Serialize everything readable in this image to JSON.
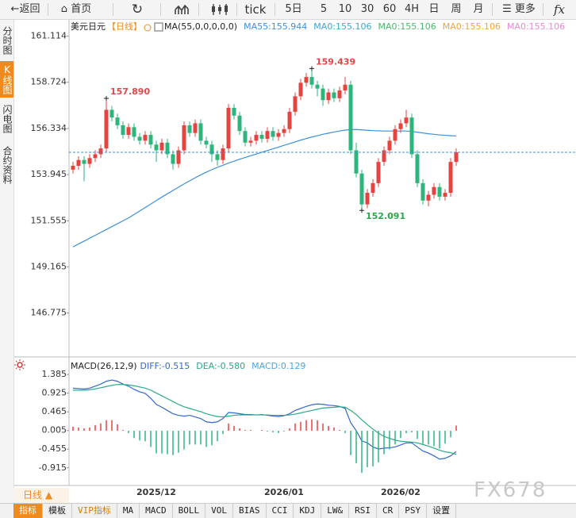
{
  "toolbar": {
    "back": "返回",
    "home": "首页",
    "tick": "tick",
    "periods": [
      "5日",
      "5",
      "10",
      "30",
      "60",
      "4H",
      "日",
      "周",
      "月"
    ],
    "more": "更多",
    "fx": "fx"
  },
  "sidebar": [
    "分时图",
    "K线图",
    "闪电图",
    "合约资料"
  ],
  "chart_data": [
    {
      "type": "candlestick",
      "title": "美元日元",
      "period": "【日线】",
      "indicator": "MA(55,0,0,0,0,0)",
      "legend": [
        {
          "text": "MA55:155.944",
          "color": "#3d8fdc"
        },
        {
          "text": "MA0:155.106",
          "color": "#38a8d0"
        },
        {
          "text": "MA0:155.106",
          "color": "#4cb86a"
        },
        {
          "text": "MA0:155.106",
          "color": "#f0a43a"
        },
        {
          "text": "MA0:155.106",
          "color": "#e58ad2"
        }
      ],
      "up_color": "#e5433f",
      "down_color": "#2db57c",
      "ylim": [
        144.5,
        162
      ],
      "yticks": [
        161.114,
        158.724,
        156.334,
        153.945,
        151.555,
        149.165,
        146.775
      ],
      "annotations": [
        "157.890",
        "159.439",
        "152.091"
      ],
      "open": [
        154.2,
        154.4,
        154.7,
        154.5,
        154.8,
        155.0,
        155.3,
        157.3,
        156.9,
        156.5,
        156.0,
        156.4,
        155.9,
        155.7,
        156.0,
        155.5,
        155.2,
        155.6,
        155.0,
        154.5,
        155.2,
        156.5,
        156.1,
        156.6,
        155.7,
        155.5,
        155.0,
        154.7,
        155.3,
        157.4,
        157.0,
        156.2,
        155.6,
        155.7,
        156.0,
        155.8,
        156.2,
        155.9,
        156.1,
        156.3,
        157.2,
        158.0,
        158.7,
        159.0,
        158.6,
        158.4,
        157.8,
        158.2,
        157.9,
        158.3,
        158.6,
        155.2,
        154.0,
        152.4,
        153.0,
        153.5,
        154.6,
        155.2,
        155.7,
        156.3,
        156.6,
        156.9,
        155.0,
        153.5,
        152.6,
        152.9,
        153.3,
        152.8,
        153.0,
        154.6
      ],
      "high": [
        154.6,
        154.9,
        154.9,
        155.0,
        155.2,
        155.5,
        157.89,
        157.5,
        157.1,
        156.7,
        156.6,
        156.6,
        156.1,
        156.2,
        156.2,
        155.7,
        155.8,
        155.8,
        155.2,
        155.4,
        156.7,
        156.7,
        156.8,
        156.8,
        155.9,
        155.7,
        155.2,
        155.5,
        157.6,
        157.6,
        157.2,
        156.4,
        155.9,
        156.2,
        156.2,
        156.4,
        156.4,
        156.3,
        156.5,
        157.4,
        158.2,
        158.9,
        159.2,
        159.439,
        158.8,
        158.6,
        158.4,
        158.4,
        158.5,
        159.0,
        158.8,
        155.6,
        154.2,
        153.2,
        153.7,
        154.8,
        155.4,
        155.9,
        156.5,
        156.8,
        157.3,
        157.1,
        155.2,
        153.7,
        153.1,
        153.5,
        153.5,
        153.2,
        154.8,
        155.3
      ],
      "low": [
        154.0,
        154.2,
        153.6,
        154.3,
        154.6,
        154.8,
        155.1,
        156.7,
        156.3,
        155.8,
        155.8,
        155.7,
        155.5,
        155.5,
        155.3,
        154.6,
        155.0,
        154.8,
        154.2,
        154.3,
        155.0,
        155.9,
        155.9,
        155.5,
        155.3,
        154.6,
        154.4,
        154.5,
        155.1,
        156.8,
        156.0,
        155.4,
        155.4,
        155.5,
        155.6,
        155.6,
        155.7,
        155.7,
        155.9,
        156.1,
        157.0,
        157.8,
        158.5,
        158.4,
        158.0,
        157.5,
        157.6,
        157.7,
        157.7,
        158.1,
        155.0,
        153.8,
        152.091,
        152.2,
        152.8,
        153.3,
        154.4,
        155.0,
        155.5,
        156.1,
        156.4,
        154.8,
        153.3,
        152.4,
        152.3,
        152.7,
        152.6,
        152.6,
        152.8,
        154.4
      ],
      "close": [
        154.4,
        154.7,
        154.5,
        154.8,
        155.0,
        155.3,
        157.3,
        156.9,
        156.5,
        156.0,
        156.4,
        155.9,
        155.7,
        156.0,
        155.5,
        155.2,
        155.6,
        155.0,
        154.5,
        155.2,
        156.5,
        156.1,
        156.6,
        155.7,
        155.5,
        155.0,
        154.7,
        155.3,
        157.4,
        157.0,
        156.2,
        155.6,
        155.7,
        156.0,
        155.8,
        156.2,
        155.9,
        156.1,
        156.3,
        157.2,
        158.0,
        158.7,
        159.0,
        158.6,
        158.4,
        157.8,
        158.2,
        157.9,
        158.3,
        158.6,
        155.2,
        154.0,
        152.4,
        153.0,
        153.5,
        154.6,
        155.2,
        155.7,
        156.3,
        156.6,
        156.9,
        155.0,
        153.5,
        152.6,
        152.9,
        153.3,
        152.8,
        153.0,
        154.6,
        155.1
      ],
      "ma": [
        150.2,
        150.35,
        150.5,
        150.65,
        150.8,
        150.95,
        151.1,
        151.25,
        151.4,
        151.55,
        151.7,
        151.88,
        152.06,
        152.24,
        152.42,
        152.6,
        152.78,
        152.95,
        153.12,
        153.29,
        153.46,
        153.62,
        153.78,
        153.93,
        154.07,
        154.2,
        154.32,
        154.43,
        154.54,
        154.64,
        154.74,
        154.83,
        154.92,
        155.01,
        155.1,
        155.19,
        155.28,
        155.37,
        155.46,
        155.55,
        155.64,
        155.73,
        155.81,
        155.89,
        155.96,
        156.03,
        156.09,
        156.15,
        156.2,
        156.25,
        156.28,
        156.28,
        156.26,
        156.24,
        156.22,
        156.21,
        156.2,
        156.2,
        156.2,
        156.2,
        156.2,
        156.18,
        156.14,
        156.1,
        156.06,
        156.03,
        156.0,
        155.98,
        155.96,
        155.944
      ]
    },
    {
      "type": "macd",
      "title": "MACD(26,12,9)",
      "ylim": [
        -1.35,
        1.78
      ],
      "yticks": [
        1.385,
        0.925,
        0.465,
        0.005,
        -0.455,
        -0.915
      ],
      "categories": [
        null,
        null,
        null,
        null,
        null,
        null,
        null,
        null,
        null,
        null,
        null,
        null,
        null,
        null,
        null,
        "2025/12",
        null,
        null,
        null,
        null,
        null,
        null,
        null,
        null,
        null,
        null,
        null,
        null,
        null,
        null,
        null,
        null,
        null,
        null,
        null,
        null,
        null,
        null,
        "2026/01",
        null,
        null,
        null,
        null,
        null,
        null,
        null,
        null,
        null,
        null,
        null,
        null,
        null,
        null,
        null,
        null,
        null,
        null,
        null,
        null,
        "2026/02",
        null,
        null,
        null,
        null,
        null,
        null,
        null,
        null,
        null,
        null
      ],
      "series": [
        {
          "label": "DIFF:-0.515",
          "color": "#3468cc",
          "values": [
            1.05,
            1.04,
            1.03,
            1.05,
            1.1,
            1.15,
            1.22,
            1.25,
            1.22,
            1.15,
            1.1,
            1.02,
            0.96,
            0.92,
            0.8,
            0.65,
            0.58,
            0.5,
            0.42,
            0.38,
            0.36,
            0.38,
            0.34,
            0.3,
            0.22,
            0.2,
            0.22,
            0.3,
            0.45,
            0.44,
            0.42,
            0.4,
            0.4,
            0.39,
            0.4,
            0.38,
            0.36,
            0.35,
            0.37,
            0.42,
            0.5,
            0.55,
            0.6,
            0.64,
            0.66,
            0.65,
            0.63,
            0.62,
            0.6,
            0.55,
            0.2,
            0.0,
            -0.25,
            -0.3,
            -0.4,
            -0.45,
            -0.43,
            -0.42,
            -0.4,
            -0.35,
            -0.3,
            -0.3,
            -0.4,
            -0.5,
            -0.55,
            -0.62,
            -0.7,
            -0.68,
            -0.62,
            -0.515
          ]
        },
        {
          "label": "DEA:-0.580",
          "color": "#2aa88a",
          "values": [
            1.0,
            1.0,
            1.0,
            1.01,
            1.03,
            1.06,
            1.09,
            1.12,
            1.14,
            1.14,
            1.13,
            1.11,
            1.08,
            1.05,
            1.0,
            0.93,
            0.86,
            0.79,
            0.72,
            0.65,
            0.59,
            0.55,
            0.51,
            0.47,
            0.42,
            0.38,
            0.35,
            0.34,
            0.36,
            0.38,
            0.39,
            0.39,
            0.39,
            0.39,
            0.39,
            0.39,
            0.38,
            0.38,
            0.38,
            0.39,
            0.41,
            0.44,
            0.47,
            0.5,
            0.53,
            0.56,
            0.57,
            0.58,
            0.59,
            0.58,
            0.5,
            0.4,
            0.27,
            0.15,
            0.04,
            -0.06,
            -0.14,
            -0.19,
            -0.23,
            -0.26,
            -0.27,
            -0.28,
            -0.3,
            -0.34,
            -0.38,
            -0.43,
            -0.48,
            -0.52,
            -0.54,
            -0.58
          ]
        },
        {
          "label": "MACD:0.129",
          "color": "#4aa6e2",
          "up_color": "#e5433f",
          "down_color": "#2db57c",
          "values": [
            0.1,
            0.08,
            0.06,
            0.08,
            0.14,
            0.18,
            0.26,
            0.26,
            0.16,
            0.02,
            -0.06,
            -0.18,
            -0.24,
            -0.26,
            -0.4,
            -0.56,
            -0.56,
            -0.58,
            -0.6,
            -0.54,
            -0.46,
            -0.34,
            -0.34,
            -0.34,
            -0.4,
            -0.36,
            -0.26,
            -0.08,
            0.18,
            0.12,
            0.06,
            0.02,
            0.02,
            0.0,
            0.02,
            -0.02,
            -0.04,
            -0.06,
            -0.02,
            0.06,
            0.18,
            0.22,
            0.26,
            0.28,
            0.26,
            0.18,
            0.12,
            0.08,
            0.02,
            -0.06,
            -0.6,
            -0.8,
            -1.04,
            -0.9,
            -0.88,
            -0.78,
            -0.58,
            -0.46,
            -0.34,
            -0.18,
            -0.06,
            -0.04,
            -0.2,
            -0.32,
            -0.34,
            -0.38,
            -0.44,
            -0.32,
            -0.16,
            0.129
          ]
        }
      ]
    }
  ],
  "period_selector": "日线 ▲",
  "watermark": "FX678",
  "tabs": [
    "指标",
    "模板",
    "VIP指标",
    "MA",
    "MACD",
    "BOLL",
    "VOL",
    "BIAS",
    "CCI",
    "KDJ",
    "LW&",
    "RSI",
    "CR",
    "PSY",
    "设置"
  ]
}
